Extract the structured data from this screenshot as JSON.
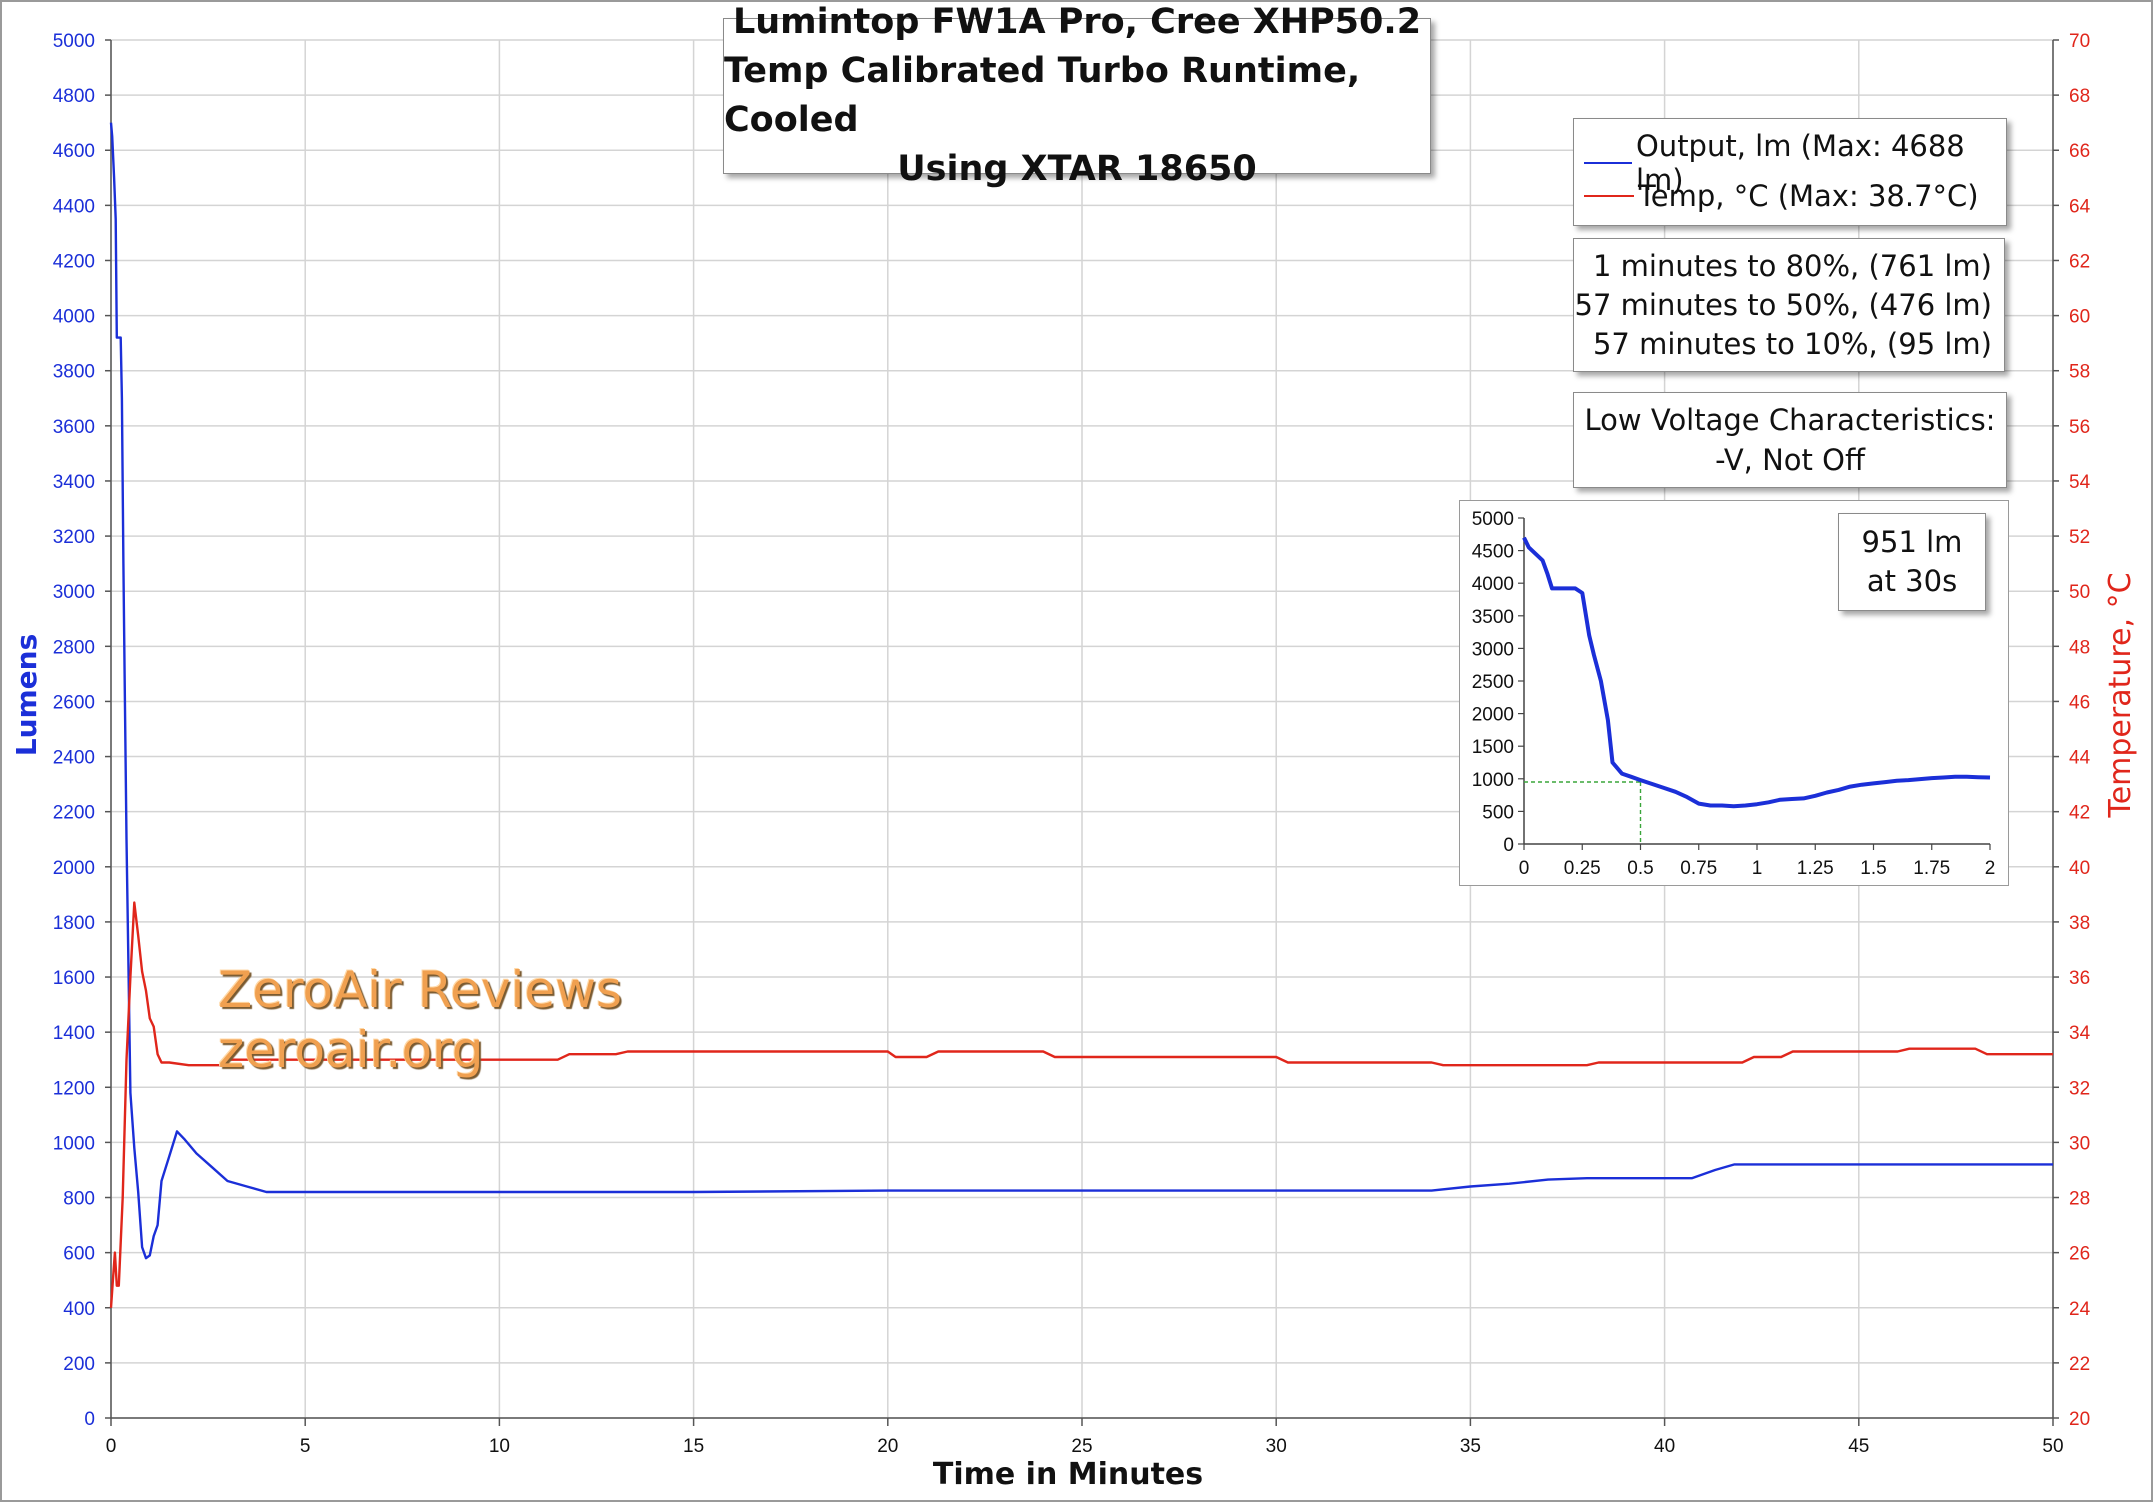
{
  "title_lines": [
    "Lumintop FW1A Pro, Cree XHP50.2",
    "Temp Calibrated Turbo Runtime, Cooled",
    "Using XTAR 18650"
  ],
  "legend": {
    "output_label": "Output, lm (Max: 4688 lm)",
    "temp_label": "Temp, °C (Max: 38.7°C)"
  },
  "stats": [
    "1 minutes to 80%, (761 lm)",
    "57 minutes to 50%, (476 lm)",
    "57 minutes to 10%, (95 lm)"
  ],
  "low_voltage": [
    "Low Voltage Characteristics:",
    "-V, Not Off"
  ],
  "inset_note": [
    "951 lm",
    "at 30s"
  ],
  "watermark": [
    "ZeroAir Reviews",
    "zeroair.org"
  ],
  "colors": {
    "output": "#1b2fd8",
    "temp": "#e0261b",
    "marker": "#3aa53a"
  },
  "chart_data": [
    {
      "type": "line",
      "xlabel": "Time in Minutes",
      "ylabel": "Lumens",
      "y2label": "Temperature, °C",
      "xlim": [
        0,
        50
      ],
      "ylim": [
        0,
        5000
      ],
      "y2lim": [
        20,
        70
      ],
      "xticks": [
        0,
        5,
        10,
        15,
        20,
        25,
        30,
        35,
        40,
        45,
        50
      ],
      "yticks": [
        0,
        200,
        400,
        600,
        800,
        1000,
        1200,
        1400,
        1600,
        1800,
        2000,
        2200,
        2400,
        2600,
        2800,
        3000,
        3200,
        3400,
        3600,
        3800,
        4000,
        4200,
        4400,
        4600,
        4800,
        5000
      ],
      "y2ticks": [
        20,
        22,
        24,
        26,
        28,
        30,
        32,
        34,
        36,
        38,
        40,
        42,
        44,
        46,
        48,
        50,
        52,
        54,
        56,
        58,
        60,
        62,
        64,
        66,
        68,
        70
      ],
      "grid": true,
      "legend_position": "top-right",
      "series": [
        {
          "name": "Output, lm (Max: 4688 lm)",
          "axis": "left",
          "x": [
            0,
            0.03,
            0.08,
            0.12,
            0.15,
            0.2,
            0.25,
            0.28,
            0.32,
            0.35,
            0.4,
            0.5,
            0.6,
            0.7,
            0.8,
            0.9,
            1.0,
            1.1,
            1.2,
            1.3,
            1.5,
            1.7,
            1.9,
            2.2,
            2.6,
            3.0,
            3.5,
            4.0,
            4.5,
            5,
            10,
            15,
            20,
            25,
            30,
            34,
            35,
            36,
            37,
            38,
            39,
            40,
            40.7,
            41.3,
            41.8,
            42.5,
            45,
            50
          ],
          "y": [
            4700,
            4650,
            4500,
            4350,
            3920,
            3920,
            3920,
            3700,
            3100,
            2700,
            2100,
            1180,
            980,
            820,
            620,
            580,
            590,
            660,
            700,
            860,
            950,
            1040,
            1010,
            960,
            910,
            860,
            840,
            820,
            820,
            820,
            820,
            820,
            825,
            825,
            825,
            825,
            840,
            850,
            865,
            870,
            870,
            870,
            870,
            900,
            920,
            920,
            920,
            920
          ]
        },
        {
          "name": "Temp, °C (Max: 38.7°C)",
          "axis": "right",
          "x": [
            0,
            0.05,
            0.1,
            0.15,
            0.2,
            0.3,
            0.4,
            0.5,
            0.6,
            0.7,
            0.8,
            0.9,
            1.0,
            1.1,
            1.2,
            1.3,
            1.5,
            2.0,
            2.8,
            3.0,
            10,
            11.5,
            11.8,
            13,
            13.3,
            20,
            20.2,
            21,
            21.3,
            24,
            24.3,
            30,
            30.3,
            34,
            34.3,
            38,
            38.3,
            42,
            42.3,
            43,
            43.3,
            46,
            46.3,
            48,
            48.3,
            50
          ],
          "y": [
            24,
            25,
            26,
            24.8,
            24.8,
            28,
            33,
            36,
            38.7,
            37.5,
            36.2,
            35.5,
            34.5,
            34.2,
            33.2,
            32.9,
            32.9,
            32.8,
            32.8,
            33,
            33,
            33,
            33.2,
            33.2,
            33.3,
            33.3,
            33.1,
            33.1,
            33.3,
            33.3,
            33.1,
            33.1,
            32.9,
            32.9,
            32.8,
            32.8,
            32.9,
            32.9,
            33.1,
            33.1,
            33.3,
            33.3,
            33.4,
            33.4,
            33.2,
            33.2
          ]
        }
      ]
    },
    {
      "type": "line",
      "xlim": [
        0,
        2
      ],
      "ylim": [
        0,
        5000
      ],
      "xticks": [
        0,
        0.25,
        0.5,
        0.75,
        1,
        1.25,
        1.5,
        1.75,
        2
      ],
      "yticks": [
        0,
        500,
        1000,
        1500,
        2000,
        2500,
        3000,
        3500,
        4000,
        4500,
        5000
      ],
      "grid": false,
      "marker": {
        "x": 0.5,
        "y": 951
      },
      "series": [
        {
          "axis": "left",
          "x": [
            0,
            0.02,
            0.05,
            0.08,
            0.1,
            0.12,
            0.15,
            0.18,
            0.22,
            0.25,
            0.28,
            0.3,
            0.33,
            0.36,
            0.38,
            0.42,
            0.46,
            0.5,
            0.55,
            0.6,
            0.65,
            0.7,
            0.75,
            0.8,
            0.85,
            0.9,
            0.95,
            1.0,
            1.05,
            1.1,
            1.15,
            1.2,
            1.25,
            1.3,
            1.35,
            1.4,
            1.45,
            1.5,
            1.55,
            1.6,
            1.65,
            1.7,
            1.75,
            1.8,
            1.85,
            1.9,
            1.95,
            2.0
          ],
          "y": [
            4700,
            4550,
            4450,
            4350,
            4150,
            3920,
            3920,
            3920,
            3920,
            3850,
            3200,
            2900,
            2500,
            1900,
            1250,
            1080,
            1030,
            980,
            920,
            860,
            800,
            720,
            620,
            590,
            590,
            580,
            590,
            610,
            640,
            680,
            690,
            700,
            740,
            790,
            830,
            880,
            910,
            930,
            950,
            970,
            980,
            995,
            1010,
            1020,
            1030,
            1030,
            1025,
            1020
          ]
        }
      ]
    }
  ]
}
